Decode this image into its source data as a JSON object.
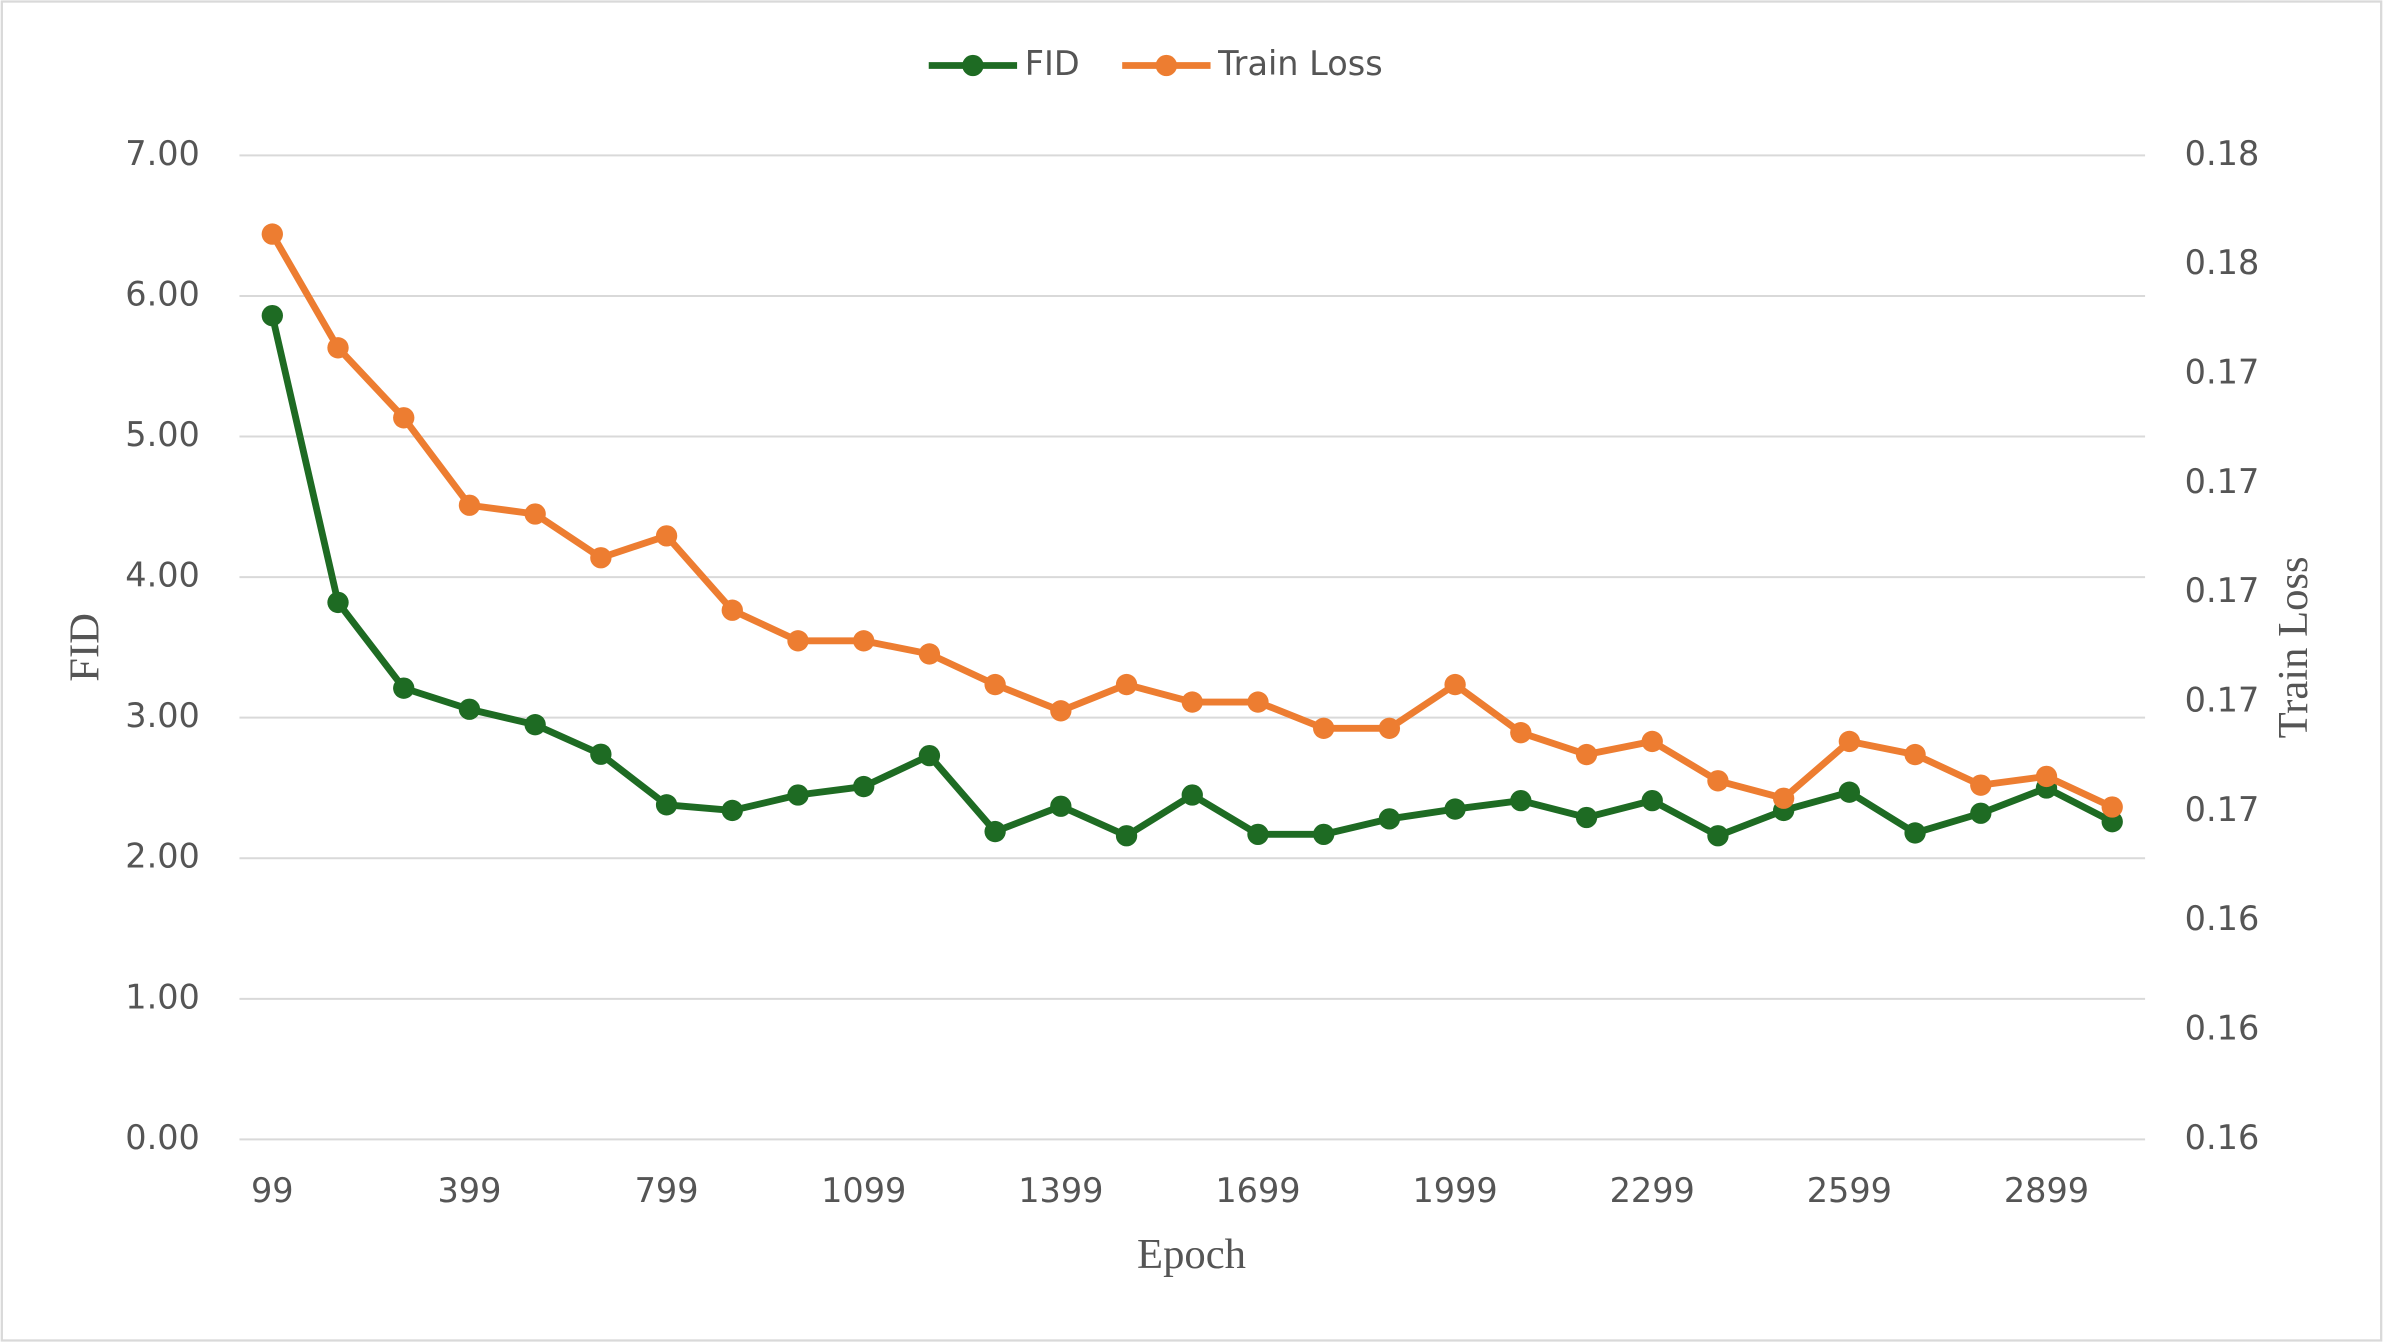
{
  "chart_data": {
    "type": "line",
    "categories": [
      "99",
      null,
      null,
      "399",
      null,
      null,
      "799",
      null,
      null,
      "1099",
      null,
      null,
      "1399",
      null,
      null,
      "1699",
      null,
      null,
      "1999",
      null,
      null,
      "2299",
      null,
      null,
      "2599",
      null,
      null,
      "2899",
      null
    ],
    "series": [
      {
        "name": "FID",
        "color": "#1e6b23",
        "values": [
          5.86,
          3.82,
          3.21,
          3.06,
          2.95,
          2.74,
          2.38,
          2.34,
          2.45,
          2.51,
          2.73,
          2.19,
          2.37,
          2.16,
          2.45,
          2.17,
          2.17,
          2.28,
          2.35,
          2.41,
          2.29,
          2.41,
          2.16,
          2.34,
          2.47,
          2.18,
          2.32,
          2.5,
          2.26
        ]
      },
      {
        "name": "Train Loss",
        "color": "#ed7d31",
        "axis": "y2",
        "values": [
          0.1782,
          0.1756,
          0.174,
          0.172,
          0.1718,
          0.1708,
          0.1713,
          0.1696,
          0.1689,
          0.1689,
          0.1686,
          0.1679,
          0.1673,
          0.1679,
          0.1675,
          0.1675,
          0.1669,
          0.1669,
          0.1679,
          0.1668,
          0.1663,
          0.1666,
          0.1657,
          0.1653,
          0.1666,
          0.1663,
          0.1656,
          0.1658,
          0.1651
        ]
      }
    ],
    "xlabel": "Epoch",
    "ylabel": "FID",
    "y2label": "Train Loss",
    "ylim": [
      0,
      7
    ],
    "yticks": [
      {
        "value": 0,
        "label": "0.00"
      },
      {
        "value": 1,
        "label": "1.00"
      },
      {
        "value": 2,
        "label": "2.00"
      },
      {
        "value": 3,
        "label": "3.00"
      },
      {
        "value": 4,
        "label": "4.00"
      },
      {
        "value": 5,
        "label": "5.00"
      },
      {
        "value": 6,
        "label": "6.00"
      },
      {
        "value": 7,
        "label": "7.00"
      }
    ],
    "y2lim": [
      0.1575,
      0.18
    ],
    "y2ticks": [
      {
        "value": 0.1575,
        "label": "0.16"
      },
      {
        "value": 0.16,
        "label": "0.16"
      },
      {
        "value": 0.1625,
        "label": "0.16"
      },
      {
        "value": 0.165,
        "label": "0.17"
      },
      {
        "value": 0.1675,
        "label": "0.17"
      },
      {
        "value": 0.17,
        "label": "0.17"
      },
      {
        "value": 0.1725,
        "label": "0.17"
      },
      {
        "value": 0.175,
        "label": "0.17"
      },
      {
        "value": 0.1775,
        "label": "0.18"
      },
      {
        "value": 0.18,
        "label": "0.18"
      }
    ],
    "grid": true,
    "legend": "top"
  }
}
